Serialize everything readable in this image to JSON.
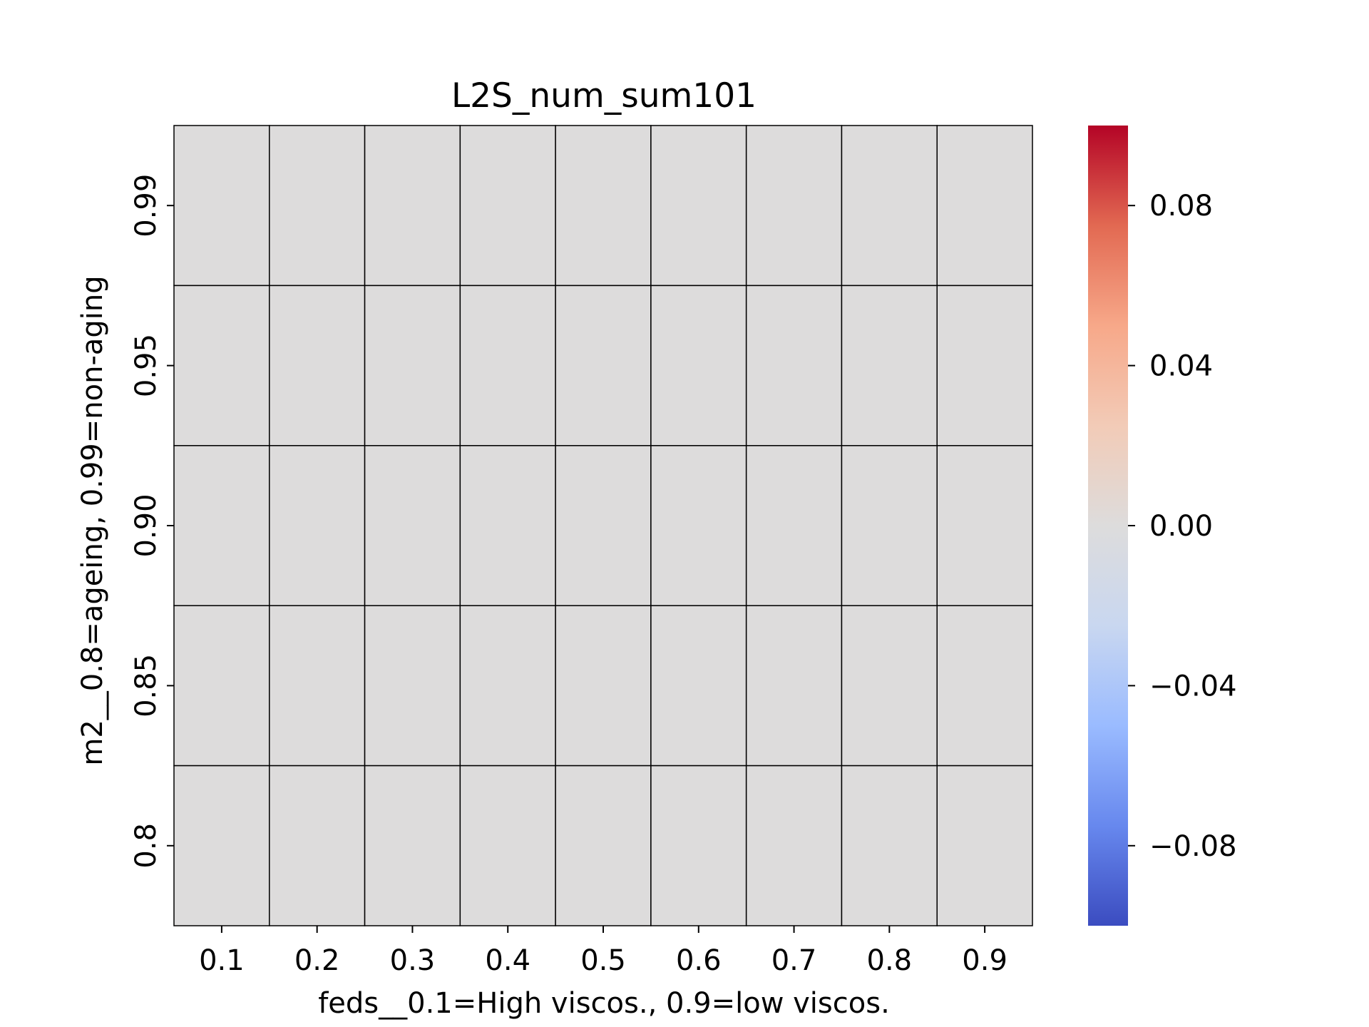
{
  "chart_data": {
    "type": "heatmap",
    "title": "L2S_num_sum101",
    "xlabel": "feds__0.1=High viscos., 0.9=low viscos.",
    "ylabel": "m2__0.8=ageing, 0.99=non-aging",
    "x_categories": [
      "0.1",
      "0.2",
      "0.3",
      "0.4",
      "0.5",
      "0.6",
      "0.7",
      "0.8",
      "0.9"
    ],
    "y_categories": [
      "0.99",
      "0.95",
      "0.90",
      "0.85",
      "0.8"
    ],
    "values": [
      [
        0,
        0,
        0,
        0,
        0,
        0,
        0,
        0,
        0
      ],
      [
        0,
        0,
        0,
        0,
        0,
        0,
        0,
        0,
        0
      ],
      [
        0,
        0,
        0,
        0,
        0,
        0,
        0,
        0,
        0
      ],
      [
        0,
        0,
        0,
        0,
        0,
        0,
        0,
        0,
        0
      ],
      [
        0,
        0,
        0,
        0,
        0,
        0,
        0,
        0,
        0
      ]
    ],
    "colormap": "coolwarm",
    "colorbar": {
      "vmin": -0.1,
      "vmax": 0.1,
      "ticks": [
        0.08,
        0.04,
        0.0,
        -0.04,
        -0.08
      ],
      "tick_labels": [
        "0.08",
        "0.04",
        "0.00",
        "−0.04",
        "−0.08"
      ]
    },
    "cell_border_color": "#000000",
    "colormap_stops": [
      "#3b4cc0",
      "#6788ee",
      "#9abbff",
      "#c9d7f0",
      "#dddcdc",
      "#f2cbb7",
      "#f7a889",
      "#e26952",
      "#b40426"
    ]
  }
}
